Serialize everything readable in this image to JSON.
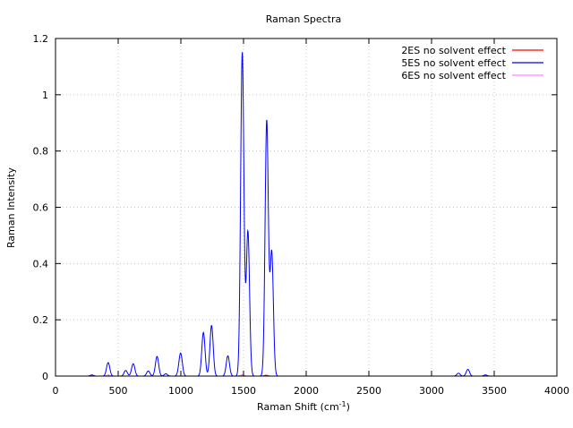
{
  "chart_data": {
    "type": "line",
    "title": "Raman Spectra",
    "xlabel": "Raman Shift (cm",
    "xlabel_sup": "-1",
    "xlabel_close": ")",
    "ylabel": "Raman Intensity",
    "xlim": [
      0,
      4000
    ],
    "ylim": [
      0,
      1.2
    ],
    "x_ticks": [
      0,
      500,
      1000,
      1500,
      2000,
      2500,
      3000,
      3500,
      4000
    ],
    "y_ticks": [
      0,
      0.2,
      0.4,
      0.6,
      0.8,
      1,
      1.2
    ],
    "y_tick_labels": [
      "0",
      "0.2",
      "0.4",
      "0.6",
      "0.8",
      "1",
      "1.2"
    ],
    "grid": true,
    "legend_position": "top-right",
    "peak_width": 13,
    "series": [
      {
        "name": "2ES no solvent effect",
        "color": "#ff0000",
        "peaks": [
          [
            420,
            0.003
          ],
          [
            1490,
            0.004
          ],
          [
            1680,
            0.003
          ]
        ]
      },
      {
        "name": "5ES no solvent effect",
        "color": "#0000ff",
        "peaks": [
          [
            290,
            0.004
          ],
          [
            420,
            0.048
          ],
          [
            560,
            0.02
          ],
          [
            620,
            0.044
          ],
          [
            740,
            0.018
          ],
          [
            810,
            0.07
          ],
          [
            880,
            0.008
          ],
          [
            990,
            0.02
          ],
          [
            1000,
            0.066
          ],
          [
            1180,
            0.155
          ],
          [
            1245,
            0.18
          ],
          [
            1375,
            0.072
          ],
          [
            1490,
            1.15
          ],
          [
            1535,
            0.515
          ],
          [
            1685,
            0.908
          ],
          [
            1725,
            0.44
          ],
          [
            3215,
            0.01
          ],
          [
            3290,
            0.024
          ],
          [
            3430,
            0.004
          ]
        ]
      },
      {
        "name": "6ES no solvent effect",
        "color": "#ff88ff",
        "peaks": [
          [
            420,
            0.002
          ],
          [
            1490,
            0.003
          ]
        ]
      }
    ]
  }
}
